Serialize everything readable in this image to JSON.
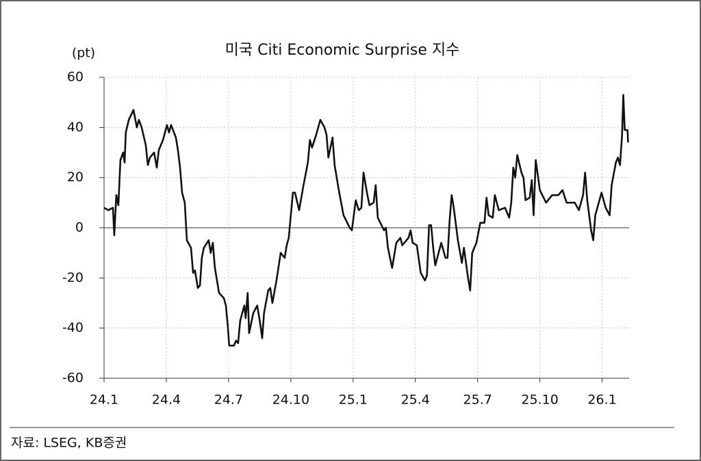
{
  "chart_data": {
    "type": "line",
    "title": "미국 Citi Economic Surprise 지수",
    "y_unit": "(pt)",
    "source": "자료: LSEG, KB증권",
    "x": [
      0,
      0.2,
      0.43,
      0.49,
      0.59,
      0.69,
      0.79,
      0.92,
      0.99,
      1.05,
      1.19,
      1.42,
      1.58,
      1.68,
      1.81,
      2.01,
      2.11,
      2.21,
      2.41,
      2.54,
      2.64,
      2.84,
      3.03,
      3.13,
      3.23,
      3.46,
      3.56,
      3.66,
      3.76,
      3.89,
      3.99,
      4.19,
      4.29,
      4.38,
      4.52,
      4.62,
      4.71,
      4.81,
      5.04,
      5.14,
      5.24,
      5.34,
      5.54,
      5.77,
      5.87,
      5.97,
      6.03,
      6.26,
      6.36,
      6.46,
      6.56,
      6.76,
      6.82,
      6.92,
      6.99,
      7.19,
      7.38,
      7.52,
      7.62,
      7.71,
      7.91,
      8.01,
      8.11,
      8.31,
      8.51,
      8.7,
      8.8,
      8.9,
      9,
      9.1,
      9.2,
      9.4,
      9.59,
      9.82,
      9.92,
      10.02,
      10.22,
      10.42,
      10.62,
      10.72,
      10.81,
      11.01,
      11.11,
      11.31,
      11.54,
      11.84,
      11.94,
      12.13,
      12.27,
      12.4,
      12.5,
      12.69,
      12.79,
      12.99,
      13.09,
      13.19,
      13.49,
      13.58,
      13.68,
      13.88,
      14.08,
      14.28,
      14.37,
      14.67,
      14.77,
      14.87,
      15.07,
      15.26,
      15.46,
      15.56,
      15.66,
      15.76,
      15.86,
      15.96,
      16.25,
      16.45,
      16.55,
      16.65,
      16.75,
      16.85,
      17.05,
      17.24,
      17.34,
      17.54,
      17.64,
      17.74,
      17.94,
      18.13,
      18.33,
      18.43,
      18.53,
      18.73,
      18.83,
      19.02,
      19.32,
      19.52,
      19.62,
      19.72,
      19.81,
      19.91,
      20.11,
      20.21,
      20.31,
      20.51,
      20.61,
      20.7,
      20.8,
      21,
      21.3,
      21.59,
      21.89,
      22.09,
      22.29,
      22.49,
      22.68,
      22.88,
      23.08,
      23.18,
      23.28,
      23.47,
      23.57,
      23.67,
      23.97,
      24.17,
      24.36,
      24.46,
      24.66,
      24.76,
      24.86,
      24.96,
      25.02,
      25.09,
      25.22,
      25.25
    ],
    "series": [
      {
        "name": "Citi Economic Surprise Index",
        "color": "#111111",
        "values": [
          8,
          7,
          8,
          -3,
          13,
          9,
          27,
          30,
          26,
          38,
          43,
          47,
          40,
          43,
          40,
          33,
          25,
          28,
          30,
          24,
          31,
          35,
          41,
          38,
          41,
          36,
          31,
          24,
          14,
          10,
          -5,
          -8,
          -18,
          -17,
          -24,
          -23,
          -12,
          -8,
          -5,
          -10,
          -6,
          -16,
          -26,
          -28,
          -31,
          -40,
          -47,
          -47,
          -45,
          -46,
          -37,
          -31,
          -36,
          -26,
          -42,
          -34,
          -31,
          -38,
          -44,
          -34,
          -25,
          -24,
          -30,
          -21,
          -10,
          -12,
          -7,
          -4,
          5,
          14,
          14,
          7,
          16,
          26,
          35,
          32,
          37,
          43,
          40,
          37,
          28,
          36,
          25,
          15,
          5,
          0,
          -1,
          11,
          7,
          8,
          22,
          13,
          9,
          10,
          17,
          4,
          -1,
          0,
          -8,
          -16,
          -6,
          -4,
          -7,
          -4,
          -1,
          -6,
          -7,
          -18,
          -21,
          -19,
          1,
          1,
          -8,
          -15,
          -6,
          -12,
          -12,
          3,
          13,
          8,
          -5,
          -14,
          -8,
          -20,
          -25,
          -10,
          -6,
          2,
          2,
          12,
          5,
          4,
          13,
          7,
          8,
          4,
          10,
          24,
          20,
          29,
          22,
          20,
          11,
          12,
          19,
          5,
          27,
          15,
          10,
          13,
          13,
          15,
          10,
          10,
          10,
          7,
          13,
          22,
          11,
          -1,
          -5,
          5,
          14,
          8,
          5,
          17,
          26,
          28,
          25,
          37,
          53,
          39,
          39,
          34
        ]
      }
    ],
    "xlim": [
      0,
      25.3
    ],
    "xticks": [
      {
        "value": 0,
        "label": "24.1"
      },
      {
        "value": 3,
        "label": "24.4"
      },
      {
        "value": 6,
        "label": "24.7"
      },
      {
        "value": 9,
        "label": "24.10"
      },
      {
        "value": 12,
        "label": "25.1"
      },
      {
        "value": 15,
        "label": "25.4"
      },
      {
        "value": 18,
        "label": "25.7"
      },
      {
        "value": 21,
        "label": "25.10"
      },
      {
        "value": 24,
        "label": "26.1"
      }
    ],
    "ylim": [
      -60,
      60
    ],
    "yticks": [
      60,
      40,
      20,
      0,
      -20,
      -40,
      -60
    ],
    "grid": true
  }
}
